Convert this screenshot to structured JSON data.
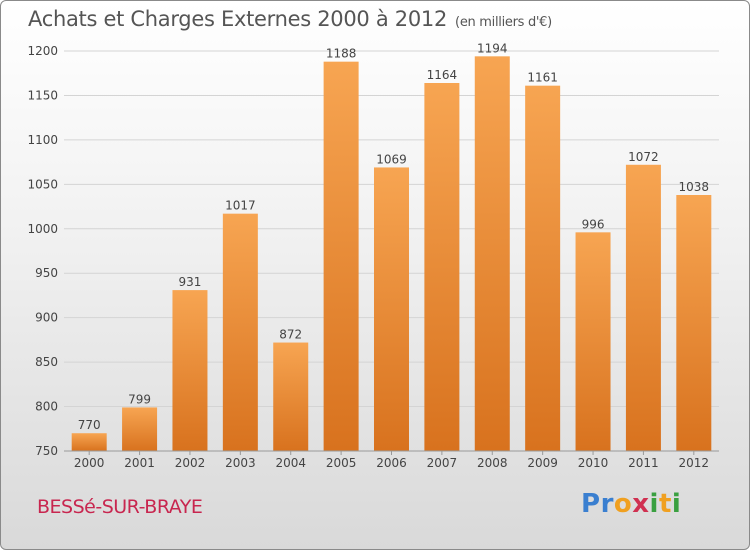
{
  "header": {
    "title": "Achats et Charges Externes 2000 à 2012",
    "subtitle": "(en milliers d'€)"
  },
  "footer": {
    "commune": "BESSé-SUR-BRAYE",
    "brand": [
      "P",
      "r",
      "o",
      "x",
      "i",
      "t",
      "i"
    ],
    "brand_colors": [
      "#3a7fd0",
      "#3a7fd0",
      "#f0a020",
      "#d03050",
      "#3aa040",
      "#f0a020",
      "#3aa040"
    ]
  },
  "chart_data": {
    "type": "bar",
    "title": "Achats et Charges Externes 2000 à 2012",
    "subtitle": "(en milliers d'€)",
    "categories": [
      "2000",
      "2001",
      "2002",
      "2003",
      "2004",
      "2005",
      "2006",
      "2007",
      "2008",
      "2009",
      "2010",
      "2011",
      "2012"
    ],
    "values": [
      770,
      799,
      931,
      1017,
      872,
      1188,
      1069,
      1164,
      1194,
      1161,
      996,
      1072,
      1038
    ],
    "ylim": [
      750,
      1200
    ],
    "yticks": [
      750,
      800,
      850,
      900,
      950,
      1000,
      1050,
      1100,
      1150,
      1200
    ],
    "grid": true,
    "bar_color_top": "#f7a552",
    "bar_color_bottom": "#d8721e",
    "xlabel": "",
    "ylabel": ""
  }
}
